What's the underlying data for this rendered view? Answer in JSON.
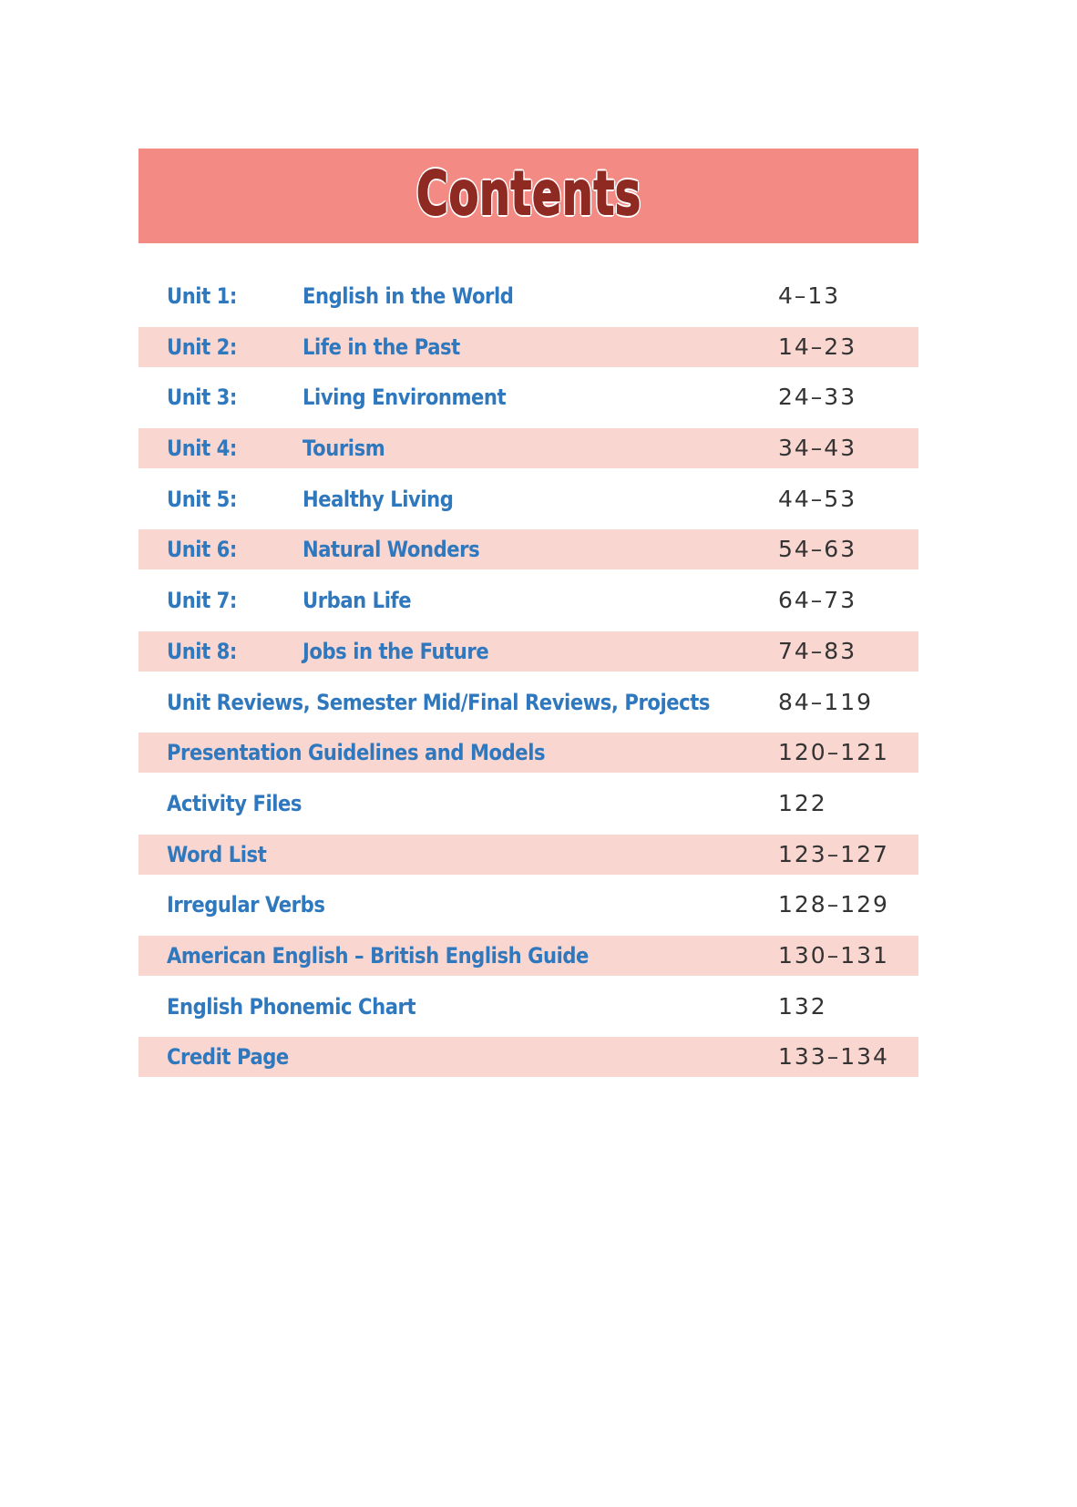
{
  "header": {
    "title": "Contents",
    "colors": {
      "banner": "#f38a84",
      "title": "#8e2a22",
      "stripe": "#f9d6d0",
      "link": "#2f78be"
    }
  },
  "entries": [
    {
      "label": "Unit 1:",
      "title": "English in the World",
      "pages": "4–13"
    },
    {
      "label": "Unit 2:",
      "title": "Life in the Past",
      "pages": "14–23"
    },
    {
      "label": "Unit 3:",
      "title": "Living Environment",
      "pages": "24–33"
    },
    {
      "label": "Unit 4:",
      "title": "Tourism",
      "pages": "34–43"
    },
    {
      "label": "Unit 5:",
      "title": "Healthy Living",
      "pages": "44–53"
    },
    {
      "label": "Unit 6:",
      "title": "Natural Wonders",
      "pages": "54–63"
    },
    {
      "label": "Unit 7:",
      "title": "Urban Life",
      "pages": "64–73"
    },
    {
      "label": "Unit 8:",
      "title": "Jobs in the Future",
      "pages": "74–83"
    },
    {
      "label": "Unit Reviews, Semester Mid/Final Reviews, Projects",
      "title": "",
      "pages": "84–119"
    },
    {
      "label": "Presentation Guidelines and Models",
      "title": "",
      "pages": "120–121"
    },
    {
      "label": "Activity Files",
      "title": "",
      "pages": "122"
    },
    {
      "label": "Word List",
      "title": "",
      "pages": "123–127"
    },
    {
      "label": "Irregular Verbs",
      "title": "",
      "pages": "128–129"
    },
    {
      "label": "American English – British English Guide",
      "title": "",
      "pages": "130–131"
    },
    {
      "label": "English Phonemic Chart",
      "title": "",
      "pages": "132"
    },
    {
      "label": "Credit Page",
      "title": "",
      "pages": "133–134"
    }
  ]
}
